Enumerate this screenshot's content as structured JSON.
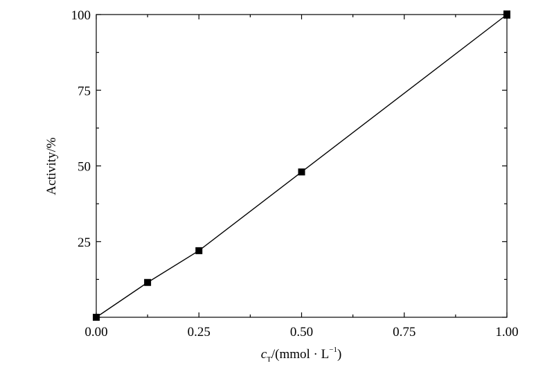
{
  "chart_data": {
    "type": "line",
    "title": "",
    "xlabel": {
      "var": "c",
      "sub": "T",
      "rest": "/(mmol · L",
      "sup": "−1",
      "close": ")"
    },
    "ylabel": "Activity/%",
    "xlim": [
      0,
      1
    ],
    "ylim": [
      0,
      100
    ],
    "x_ticks": [
      0,
      0.25,
      0.5,
      0.75,
      1.0
    ],
    "x_tick_labels": [
      "0.00",
      "0.25",
      "0.50",
      "0.75",
      "1.00"
    ],
    "y_ticks": [
      25,
      50,
      75,
      100
    ],
    "y_tick_labels": [
      "25",
      "50",
      "75",
      "100"
    ],
    "grid": false,
    "series": [
      {
        "x": [
          0,
          0.125,
          0.25,
          0.5,
          1.0
        ],
        "y": [
          0,
          11.5,
          22,
          48,
          100
        ],
        "marker": "square",
        "color": "#000000",
        "error_y": [
          0,
          0,
          0,
          0,
          1.2
        ]
      }
    ]
  }
}
